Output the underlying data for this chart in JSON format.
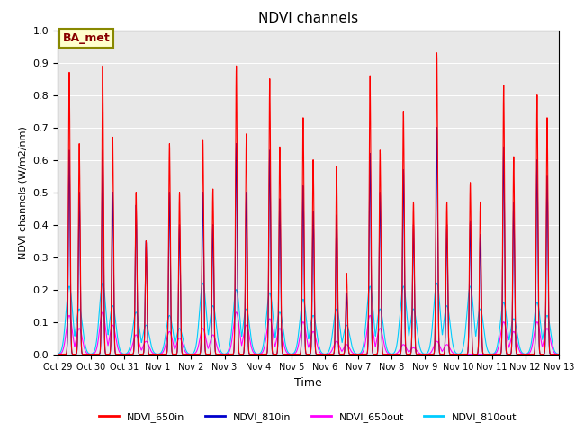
{
  "title": "NDVI channels",
  "xlabel": "Time",
  "ylabel": "NDVI channels (W/m2/nm)",
  "ylim": [
    0.0,
    1.0
  ],
  "yticks": [
    0.0,
    0.1,
    0.2,
    0.3,
    0.4,
    0.5,
    0.6,
    0.7,
    0.8,
    0.9,
    1.0
  ],
  "xtick_labels": [
    "Oct 29",
    "Oct 30",
    "Oct 31",
    "Nov 1",
    "Nov 2",
    "Nov 3",
    "Nov 4",
    "Nov 5",
    "Nov 6",
    "Nov 7",
    "Nov 8",
    "Nov 9",
    "Nov 10",
    "Nov 11",
    "Nov 12",
    "Nov 13"
  ],
  "line_colors": {
    "650in": "#ff0000",
    "810in": "#0000cc",
    "650out": "#ff00ff",
    "810out": "#00ccff"
  },
  "line_labels": {
    "650in": "NDVI_650in",
    "810in": "NDVI_810in",
    "650out": "NDVI_650out",
    "810out": "NDVI_810out"
  },
  "annotation_text": "BA_met",
  "annotation_facecolor": "#ffffcc",
  "annotation_edgecolor": "#888800",
  "background_color": "#e8e8e8",
  "n_days": 15,
  "points_per_day": 200,
  "day_peaks_650in": [
    0.87,
    0.89,
    0.5,
    0.65,
    0.66,
    0.89,
    0.85,
    0.73,
    0.58,
    0.86,
    0.75,
    0.93,
    0.53,
    0.83,
    0.8
  ],
  "day_peaks_810in": [
    0.63,
    0.63,
    0.46,
    0.5,
    0.5,
    0.65,
    0.63,
    0.52,
    0.43,
    0.62,
    0.57,
    0.7,
    0.41,
    0.64,
    0.6
  ],
  "day_peaks_650out": [
    0.12,
    0.13,
    0.06,
    0.07,
    0.08,
    0.13,
    0.11,
    0.1,
    0.04,
    0.12,
    0.03,
    0.04,
    0.0,
    0.1,
    0.1
  ],
  "day_peaks_810out": [
    0.21,
    0.22,
    0.13,
    0.12,
    0.22,
    0.2,
    0.19,
    0.17,
    0.14,
    0.21,
    0.21,
    0.22,
    0.21,
    0.16,
    0.16
  ],
  "day_peaks2_650in": [
    0.65,
    0.67,
    0.35,
    0.5,
    0.51,
    0.68,
    0.64,
    0.6,
    0.25,
    0.63,
    0.47,
    0.47,
    0.47,
    0.61,
    0.73
  ],
  "day_peaks2_810in": [
    0.5,
    0.5,
    0.35,
    0.4,
    0.4,
    0.5,
    0.48,
    0.44,
    0.19,
    0.5,
    0.4,
    0.4,
    0.37,
    0.47,
    0.55
  ],
  "day_peaks2_650out": [
    0.08,
    0.09,
    0.04,
    0.05,
    0.06,
    0.09,
    0.08,
    0.07,
    0.03,
    0.08,
    0.02,
    0.03,
    0.0,
    0.07,
    0.08
  ],
  "day_peaks2_810out": [
    0.14,
    0.15,
    0.09,
    0.08,
    0.15,
    0.14,
    0.13,
    0.12,
    0.09,
    0.14,
    0.14,
    0.15,
    0.14,
    0.11,
    0.12
  ]
}
